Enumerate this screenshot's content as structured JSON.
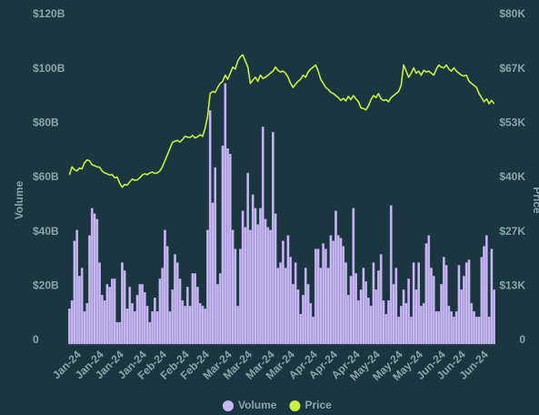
{
  "chart_data": {
    "type": "bar_line",
    "y_label": "Volume",
    "y2_label": "Price",
    "categories": [
      null,
      null,
      null,
      null,
      "Jan-24",
      null,
      null,
      null,
      null,
      null,
      null,
      null,
      null,
      "Jan-24",
      null,
      null,
      null,
      null,
      null,
      null,
      null,
      "Jan-24",
      null,
      null,
      null,
      null,
      null,
      null,
      null,
      null,
      "Jan-24",
      null,
      null,
      null,
      null,
      null,
      null,
      null,
      "Feb-24",
      null,
      null,
      null,
      null,
      null,
      null,
      null,
      null,
      "Feb-24",
      null,
      null,
      null,
      null,
      null,
      null,
      null,
      "Feb-24",
      null,
      null,
      null,
      null,
      null,
      null,
      null,
      null,
      "Mar-24",
      null,
      null,
      null,
      null,
      null,
      null,
      null,
      "Mar-24",
      null,
      null,
      null,
      null,
      null,
      null,
      null,
      null,
      "Mar-24",
      null,
      null,
      null,
      null,
      null,
      null,
      null,
      "Mar-24",
      null,
      null,
      null,
      null,
      null,
      null,
      null,
      null,
      "Apr-24",
      null,
      null,
      null,
      null,
      null,
      null,
      null,
      "Apr-24",
      null,
      null,
      null,
      null,
      null,
      null,
      null,
      null,
      "Apr-24",
      null,
      null,
      null,
      null,
      null,
      null,
      null,
      "May-24",
      null,
      null,
      null,
      null,
      null,
      null,
      null,
      null,
      "May-24",
      null,
      null,
      null,
      null,
      null,
      null,
      null,
      "May-24",
      null,
      null,
      null,
      null,
      null,
      null,
      null,
      null,
      "Jun-24",
      null,
      null,
      null,
      null,
      null,
      null,
      null,
      "Jun-24",
      null,
      null,
      null,
      null,
      null,
      null,
      null,
      null,
      "Jun-24",
      null,
      null,
      null
    ],
    "series": [
      {
        "name": "Volume",
        "type": "bar",
        "color": "#c9b9f2",
        "values": [
          13000000000.0,
          16000000000.0,
          38000000000.0,
          42000000000.0,
          25000000000.0,
          28000000000.0,
          12000000000.0,
          15000000000.0,
          40000000000.0,
          50000000000.0,
          48000000000.0,
          46000000000.0,
          30000000000.0,
          18000000000.0,
          16000000000.0,
          22000000000.0,
          21000000000.0,
          24000000000.0,
          24000000000.0,
          8000000000.0,
          8000000000.0,
          30000000000.0,
          27000000000.0,
          13000000000.0,
          21000000000.0,
          15000000000.0,
          12000000000.0,
          18000000000.0,
          22000000000.0,
          22000000000.0,
          19000000000.0,
          14000000000.0,
          8000000000.0,
          12000000000.0,
          17000000000.0,
          12000000000.0,
          24000000000.0,
          28000000000.0,
          42000000000.0,
          36000000000.0,
          12000000000.0,
          20000000000.0,
          33000000000.0,
          30000000000.0,
          24000000000.0,
          16000000000.0,
          14000000000.0,
          21000000000.0,
          14000000000.0,
          26000000000.0,
          26000000000.0,
          21000000000.0,
          15000000000.0,
          14000000000.0,
          13000000000.0,
          42000000000.0,
          86000000000.0,
          52000000000.0,
          65000000000.0,
          22000000000.0,
          26000000000.0,
          73000000000.0,
          96000000000.0,
          72000000000.0,
          70000000000.0,
          42000000000.0,
          35000000000.0,
          14000000000.0,
          35000000000.0,
          49000000000.0,
          43000000000.0,
          63000000000.0,
          42000000000.0,
          55000000000.0,
          50000000000.0,
          44000000000.0,
          50000000000.0,
          80000000000.0,
          46000000000.0,
          43000000000.0,
          42000000000.0,
          78000000000.0,
          48000000000.0,
          28000000000.0,
          30000000000.0,
          38000000000.0,
          28000000000.0,
          40000000000.0,
          32000000000.0,
          22000000000.0,
          30000000000.0,
          20000000000.0,
          11000000000.0,
          18000000000.0,
          28000000000.0,
          22000000000.0,
          15000000000.0,
          10000000000.0,
          35000000000.0,
          35000000000.0,
          28000000000.0,
          37000000000.0,
          35000000000.0,
          28000000000.0,
          40000000000.0,
          38000000000.0,
          49000000000.0,
          40000000000.0,
          39000000000.0,
          36000000000.0,
          30000000000.0,
          18000000000.0,
          25000000000.0,
          50000000000.0,
          26000000000.0,
          16000000000.0,
          20000000000.0,
          28000000000.0,
          23000000000.0,
          17000000000.0,
          14000000000.0,
          30000000000.0,
          20000000000.0,
          27000000000.0,
          33000000000.0,
          16000000000.0,
          11000000000.0,
          16000000000.0,
          51000000000.0,
          22000000000.0,
          28000000000.0,
          10000000000.0,
          14000000000.0,
          20000000000.0,
          15000000000.0,
          24000000000.0,
          10000000000.0,
          30000000000.0,
          20000000000.0,
          30000000000.0,
          14000000000.0,
          15000000000.0,
          37000000000.0,
          40000000000.0,
          28000000000.0,
          25000000000.0,
          12000000000.0,
          12000000000.0,
          22000000000.0,
          32000000000.0,
          29000000000.0,
          14000000000.0,
          12000000000.0,
          10000000000.0,
          12000000000.0,
          29000000000.0,
          20000000000.0,
          25000000000.0,
          30000000000.0,
          31000000000.0,
          15000000000.0,
          12000000000.0,
          10000000000.0,
          10000000000.0,
          32000000000.0,
          36000000000.0,
          40000000000.0,
          10000000000.0,
          35000000000.0,
          20000000000.0
        ]
      },
      {
        "name": "Price",
        "type": "line",
        "axis": "y2",
        "color": "#c8f03c",
        "values": [
          41500,
          43500,
          42800,
          42500,
          43200,
          43000,
          44500,
          45200,
          45000,
          44000,
          43800,
          43500,
          43400,
          42500,
          42000,
          41800,
          41500,
          41600,
          40800,
          41000,
          39500,
          38500,
          39200,
          39000,
          39800,
          40500,
          40200,
          40300,
          40800,
          41500,
          41800,
          41600,
          42000,
          42200,
          41900,
          42000,
          42500,
          43500,
          45000,
          46500,
          48000,
          49500,
          49800,
          50000,
          49600,
          50200,
          51000,
          50800,
          50700,
          51200,
          50600,
          50900,
          51400,
          51000,
          53000,
          56000,
          61500,
          62000,
          61800,
          63000,
          64000,
          64500,
          66000,
          65000,
          66500,
          68000,
          67500,
          69500,
          70500,
          71000,
          69500,
          68000,
          64000,
          64800,
          65500,
          64500,
          66000,
          65200,
          65500,
          66000,
          66500,
          67000,
          68000,
          67200,
          66800,
          67000,
          66500,
          65500,
          64000,
          63000,
          63800,
          64500,
          65000,
          66000,
          65500,
          66800,
          67500,
          68000,
          68500,
          67000,
          65000,
          64000,
          63000,
          62500,
          61800,
          61500,
          61000,
          60500,
          59800,
          60300,
          59700,
          60800,
          60000,
          61000,
          60200,
          59500,
          58000,
          57800,
          57500,
          58500,
          60000,
          61000,
          60500,
          61500,
          60200,
          59800,
          60000,
          59500,
          60500,
          61000,
          61500,
          62000,
          63500,
          68500,
          67000,
          65500,
          66500,
          67800,
          66500,
          67000,
          66000,
          67200,
          66800,
          67000,
          66500,
          66000,
          67500,
          68500,
          68000,
          67800,
          68500,
          67500,
          67000,
          67800,
          67000,
          66500,
          66000,
          65800,
          66000,
          64500,
          64000,
          63500,
          63000,
          61500,
          60500,
          59500,
          60200,
          59000,
          59800,
          59000
        ]
      }
    ],
    "ylim": [
      0,
      120000000000.0
    ],
    "yticks": [
      0,
      {
        "value": 20000000000.0,
        "label": "$20B"
      },
      {
        "value": 40000000000.0,
        "label": "$40B"
      },
      {
        "value": 60000000000.0,
        "label": "$60B"
      },
      {
        "value": 80000000000.0,
        "label": "$80B"
      },
      {
        "value": 100000000000.0,
        "label": "$100B"
      },
      {
        "value": 120000000000.0,
        "label": "$120B"
      }
    ],
    "y2lim": [
      0,
      80000
    ],
    "y2ticks": [
      0,
      {
        "value": 13333,
        "label": "$13K"
      },
      {
        "value": 26667,
        "label": "$27K"
      },
      {
        "value": 40000,
        "label": "$40K"
      },
      {
        "value": 53333,
        "label": "$53K"
      },
      {
        "value": 66667,
        "label": "$67K"
      },
      {
        "value": 80000,
        "label": "$80K"
      }
    ],
    "legend": "bottom"
  }
}
